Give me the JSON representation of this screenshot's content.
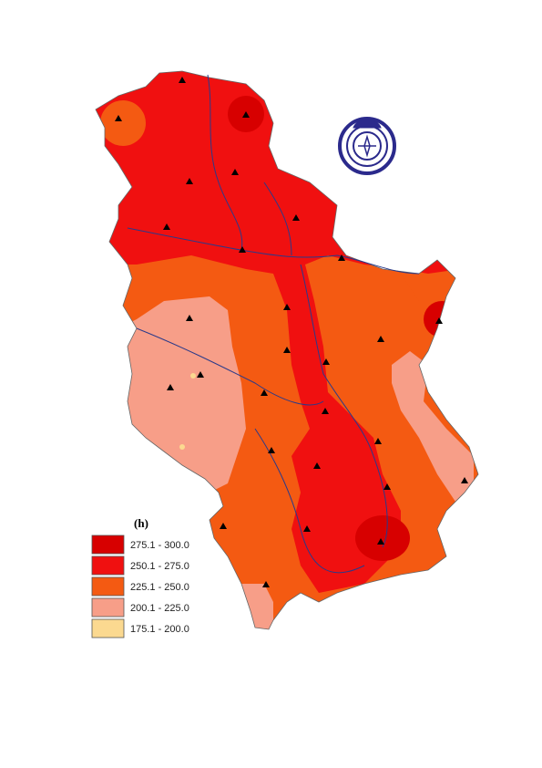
{
  "legend": {
    "title": "(h)",
    "items": [
      {
        "label": "275.1 - 300.0",
        "color": "#d70000"
      },
      {
        "label": "250.1 - 275.0",
        "color": "#f01010"
      },
      {
        "label": "225.1 - 250.0",
        "color": "#f45a12"
      },
      {
        "label": "200.1 - 225.0",
        "color": "#f79e88"
      },
      {
        "label": "175.1 - 200.0",
        "color": "#fbd990"
      }
    ]
  }
}
